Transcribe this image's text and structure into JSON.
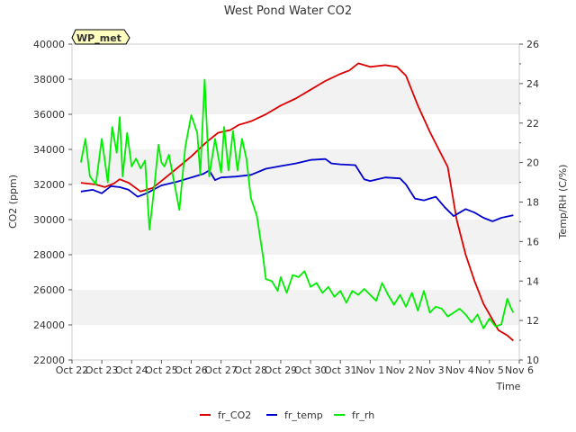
{
  "chart_data": {
    "type": "line",
    "title": "West Pond Water CO2",
    "badge": "WP_met",
    "xlabel": "Time",
    "ylabel_left": "CO2 (ppm)",
    "ylabel_right": "Temp/RH (C/%)",
    "x_ticks": [
      "Oct 22",
      "Oct 23",
      "Oct 24",
      "Oct 25",
      "Oct 26",
      "Oct 27",
      "Oct 28",
      "Oct 29",
      "Oct 30",
      "Oct 31",
      "Nov 1",
      "Nov 2",
      "Nov 3",
      "Nov 4",
      "Nov 5",
      "Nov 6"
    ],
    "xlim": [
      0,
      15
    ],
    "ylim_left": [
      22000,
      40000
    ],
    "ylim_right": [
      10,
      26
    ],
    "y_ticks_left": [
      22000,
      24000,
      26000,
      28000,
      30000,
      32000,
      34000,
      36000,
      38000,
      40000
    ],
    "y_ticks_right": [
      10,
      12,
      14,
      16,
      18,
      20,
      22,
      24,
      26
    ],
    "grid": "horizontal bands",
    "legend_position": "bottom",
    "series": [
      {
        "name": "fr_CO2",
        "color": "#dd0000",
        "axis": "left",
        "x": [
          0.3,
          0.8,
          1.1,
          1.4,
          1.6,
          1.9,
          2.3,
          2.7,
          3.0,
          3.5,
          4.0,
          4.5,
          4.9,
          5.3,
          5.6,
          6.0,
          6.5,
          7.0,
          7.5,
          8.0,
          8.5,
          9.0,
          9.3,
          9.6,
          10.0,
          10.5,
          10.9,
          11.2,
          11.6,
          12.0,
          12.3,
          12.6,
          12.9,
          13.2,
          13.5,
          13.8,
          14.1,
          14.3,
          14.6,
          14.8
        ],
        "y": [
          32100,
          32000,
          31850,
          32050,
          32300,
          32100,
          31600,
          31800,
          32200,
          32900,
          33600,
          34400,
          34950,
          35100,
          35400,
          35600,
          36000,
          36500,
          36900,
          37400,
          37900,
          38300,
          38500,
          38900,
          38700,
          38800,
          38700,
          38200,
          36500,
          35000,
          34000,
          33000,
          30000,
          28000,
          26500,
          25200,
          24300,
          23700,
          23400,
          23100
        ]
      },
      {
        "name": "fr_temp",
        "color": "#0000cc",
        "axis": "left",
        "x": [
          0.3,
          0.7,
          1.0,
          1.3,
          1.6,
          1.9,
          2.2,
          2.5,
          3.0,
          3.5,
          4.0,
          4.4,
          4.6,
          4.8,
          5.0,
          5.5,
          6.0,
          6.5,
          7.0,
          7.5,
          8.0,
          8.5,
          8.7,
          9.0,
          9.5,
          9.8,
          10.0,
          10.5,
          11.0,
          11.2,
          11.5,
          11.8,
          12.2,
          12.5,
          12.8,
          13.2,
          13.5,
          13.8,
          14.1,
          14.4,
          14.8
        ],
        "y": [
          31600,
          31700,
          31500,
          31900,
          31850,
          31700,
          31300,
          31500,
          31950,
          32150,
          32400,
          32600,
          32800,
          32250,
          32400,
          32450,
          32550,
          32900,
          33050,
          33200,
          33400,
          33450,
          33200,
          33150,
          33100,
          32300,
          32200,
          32400,
          32350,
          32000,
          31200,
          31100,
          31300,
          30700,
          30200,
          30600,
          30400,
          30100,
          29900,
          30100,
          30250
        ]
      },
      {
        "name": "fr_rh",
        "color": "#00ee00",
        "axis": "right",
        "x": [
          0.3,
          0.45,
          0.6,
          0.8,
          1.0,
          1.2,
          1.35,
          1.5,
          1.6,
          1.7,
          1.85,
          2.0,
          2.15,
          2.3,
          2.45,
          2.6,
          2.75,
          2.9,
          3.0,
          3.1,
          3.25,
          3.4,
          3.6,
          3.8,
          4.0,
          4.2,
          4.3,
          4.45,
          4.6,
          4.8,
          5.0,
          5.1,
          5.25,
          5.4,
          5.55,
          5.7,
          5.85,
          6.0,
          6.2,
          6.4,
          6.5,
          6.7,
          6.9,
          7.0,
          7.2,
          7.4,
          7.6,
          7.8,
          8.0,
          8.2,
          8.4,
          8.6,
          8.8,
          9.0,
          9.2,
          9.4,
          9.6,
          9.8,
          10.0,
          10.2,
          10.4,
          10.6,
          10.8,
          11.0,
          11.2,
          11.4,
          11.6,
          11.8,
          12.0,
          12.2,
          12.4,
          12.6,
          12.8,
          13.0,
          13.2,
          13.4,
          13.6,
          13.8,
          14.0,
          14.2,
          14.4,
          14.6,
          14.7,
          14.8
        ],
        "y": [
          20.0,
          21.2,
          19.3,
          18.9,
          21.2,
          19.0,
          21.8,
          20.5,
          22.3,
          19.3,
          21.5,
          19.8,
          20.2,
          19.7,
          20.1,
          16.6,
          18.6,
          20.9,
          20.0,
          19.8,
          20.4,
          19.2,
          17.6,
          20.8,
          22.4,
          21.5,
          19.4,
          24.2,
          19.3,
          21.2,
          19.5,
          21.8,
          19.6,
          21.6,
          19.6,
          21.2,
          20.2,
          18.2,
          17.3,
          15.3,
          14.1,
          14.0,
          13.5,
          14.2,
          13.4,
          14.3,
          14.2,
          14.5,
          13.7,
          13.9,
          13.4,
          13.7,
          13.2,
          13.5,
          12.9,
          13.5,
          13.3,
          13.6,
          13.3,
          13.0,
          13.9,
          13.3,
          12.8,
          13.3,
          12.7,
          13.4,
          12.5,
          13.5,
          12.4,
          12.7,
          12.6,
          12.2,
          12.4,
          12.6,
          12.3,
          11.9,
          12.3,
          11.6,
          12.1,
          11.7,
          11.8,
          13.1,
          12.7,
          12.4
        ]
      }
    ]
  }
}
